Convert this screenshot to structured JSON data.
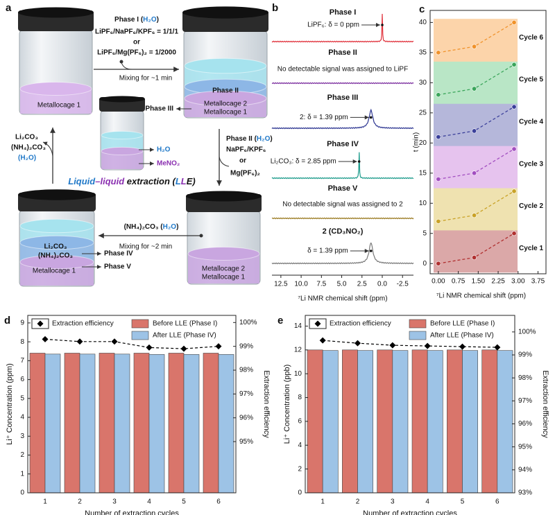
{
  "diagram": {
    "panel": "a",
    "step1": {
      "line1": [
        "Phase I (",
        "H₂O",
        ")"
      ],
      "line2": "LiPF₆/NaPF₆/KPF₆ = 1/1/1",
      "line3": "or",
      "line4": "LiPF₆/Mg(PF₆)₂ = 1/2000",
      "note": "Mixing for ~1 min"
    },
    "jar1": "Metallocage 1",
    "jar2": [
      "Phase II",
      "Metallocage 2",
      "Metallocage 1"
    ],
    "phase3_label": "Phase III",
    "small_jar": [
      "H₂O",
      "MeNO₂"
    ],
    "step2": {
      "line1": [
        "Phase II (",
        "H₂O",
        ")"
      ],
      "line2": "NaPF₆/KPF₆",
      "line3": "or",
      "line4": "Mg(PF₆)₂"
    },
    "jar3": [
      "Metallocage 2",
      "Metallocage 1"
    ],
    "step3": {
      "line1": [
        "(NH₄)₂CO₃ (",
        "H₂O",
        ")"
      ],
      "note": "Mixing for ~2 min"
    },
    "jar4": [
      "Li₂CO₃",
      "(NH₄)₂CO₃",
      "Metallocage 1",
      "Phase IV",
      "Phase V"
    ],
    "step4": [
      "Li₂CO₃",
      "(NH₄)₂CO₃",
      "(H₂O)"
    ],
    "center": [
      "Liquid",
      "–liquid",
      " extraction (",
      "L",
      "L",
      "E",
      ")"
    ]
  },
  "chart_data": [
    {
      "type": "spectrum",
      "panel": "b",
      "xlabel": "⁷Li NMR chemical shift (ppm)",
      "xlim": [
        13.6,
        -3.85
      ],
      "xticks": [
        12.5,
        {
          "value": 10,
          "label": "10.0"
        },
        7.5,
        {
          "value": 5,
          "label": "5.0"
        },
        2.5,
        {
          "value": 0,
          "label": "0.0"
        },
        -2.5
      ],
      "series": [
        {
          "name": "Phase I",
          "color": "#e0303a",
          "peak": 0,
          "annotation": "LiPF₆: δ = 0 ppm"
        },
        {
          "name": "Phase II",
          "color": "#7a2c9e",
          "annotation": "No detectable signal was assigned to LiPF"
        },
        {
          "name": "Phase III",
          "color": "#2a3390",
          "peak": 1.39,
          "annotation": "2: δ = 1.39 ppm"
        },
        {
          "name": "Phase IV",
          "color": "#1a9a8a",
          "peak": 2.85,
          "annotation": "Li₂CO₃: δ = 2.85 ppm"
        },
        {
          "name": "Phase V",
          "color": "#9a7a20",
          "annotation": "No detectable signal was assigned to 2"
        },
        {
          "name": "2 (CD₃NO₂)",
          "color": "#777777",
          "peak": 1.39,
          "annotation": "δ = 1.39 ppm"
        }
      ]
    },
    {
      "type": "line",
      "panel": "c",
      "xlabel": "⁷Li NMR chemical shift (ppm)",
      "ylabel": "t (min)",
      "x": [
        0,
        1.35,
        2.85
      ],
      "xlim": [
        -0.31,
        4.05
      ],
      "ylim": [
        -1.7,
        42
      ],
      "xticks": [
        {
          "value": 0,
          "label": "0.00"
        },
        {
          "value": 0.75,
          "label": "0.75"
        },
        {
          "value": 1.5,
          "label": "1.50"
        },
        {
          "value": 2.25,
          "label": "2.25"
        },
        {
          "value": 3,
          "label": "3.00"
        },
        {
          "value": 3.75,
          "label": "3.75"
        }
      ],
      "yticks": [
        0,
        5,
        10,
        15,
        20,
        25,
        30,
        35,
        40
      ],
      "series": [
        {
          "name": "Cycle 1",
          "color": "#b03030",
          "band": "#dba8a8",
          "values": [
            0,
            1,
            5
          ]
        },
        {
          "name": "Cycle 2",
          "color": "#c9a227",
          "band": "#efe2b0",
          "values": [
            7,
            8,
            12
          ]
        },
        {
          "name": "Cycle 3",
          "color": "#a24ec0",
          "band": "#e6c3ee",
          "values": [
            14,
            15,
            19
          ]
        },
        {
          "name": "Cycle 4",
          "color": "#3a3f9a",
          "band": "#b5b7da",
          "values": [
            21,
            22,
            26
          ]
        },
        {
          "name": "Cycle 5",
          "color": "#3aa55a",
          "band": "#b9e6c6",
          "values": [
            28,
            29,
            33
          ]
        },
        {
          "name": "Cycle 6",
          "color": "#f0922b",
          "band": "#fcd4aa",
          "values": [
            35,
            36,
            40
          ]
        }
      ]
    },
    {
      "type": "bar",
      "panel": "d",
      "xlabel": "Number of extraction cycles",
      "ylabel": "Li⁺ Concentration (ppm)",
      "y2label": "Extraction efficiency",
      "categories": [
        "1",
        "2",
        "3",
        "4",
        "5",
        "6"
      ],
      "ylim": [
        0,
        9.4
      ],
      "yticks": [
        0,
        1,
        2,
        3,
        4,
        5,
        6,
        7,
        8,
        9
      ],
      "y2lim": [
        92.85,
        100.3
      ],
      "y2ticks": [
        {
          "value": 95,
          "label": "95%"
        },
        {
          "value": 96,
          "label": "96%"
        },
        {
          "value": 97,
          "label": "97%"
        },
        {
          "value": 98,
          "label": "98%"
        },
        {
          "value": 99,
          "label": "99%"
        },
        {
          "value": 100,
          "label": "100%"
        }
      ],
      "series": [
        {
          "name": "Extraction efficiency",
          "color": "#000000",
          "axis": "y2",
          "values": [
            99.3,
            99.2,
            99.2,
            98.95,
            98.9,
            99.0
          ]
        },
        {
          "name": "Before LLE (Phase I)",
          "color": "#d9756b",
          "values": [
            7.4,
            7.4,
            7.4,
            7.4,
            7.4,
            7.4
          ]
        },
        {
          "name": "After LLE (Phase IV)",
          "color": "#9dc3e6",
          "values": [
            7.35,
            7.35,
            7.35,
            7.33,
            7.33,
            7.33
          ]
        }
      ]
    },
    {
      "type": "bar",
      "panel": "e",
      "xlabel": "Number of extraction cycles",
      "ylabel": "Li⁺ Concentration (ppb)",
      "y2label": "Extraction efficiency",
      "categories": [
        "1",
        "2",
        "3",
        "4",
        "5",
        "6"
      ],
      "ylim": [
        0,
        14.9
      ],
      "yticks": [
        0,
        2,
        4,
        6,
        8,
        10,
        12,
        14
      ],
      "y2lim": [
        93,
        100.72
      ],
      "y2ticks": [
        {
          "value": 93,
          "label": "93%"
        },
        {
          "value": 94,
          "label": "94%"
        },
        {
          "value": 95,
          "label": "95%"
        },
        {
          "value": 96,
          "label": "96%"
        },
        {
          "value": 97,
          "label": "97%"
        },
        {
          "value": 98,
          "label": "98%"
        },
        {
          "value": 99,
          "label": "99%"
        },
        {
          "value": 100,
          "label": "100%"
        }
      ],
      "series": [
        {
          "name": "Extraction efficiency",
          "color": "#000000",
          "axis": "y2",
          "values": [
            99.63,
            99.51,
            99.42,
            99.39,
            99.36,
            99.33
          ]
        },
        {
          "name": "Before LLE (Phase I)",
          "color": "#d9756b",
          "values": [
            12.0,
            12.0,
            12.0,
            12.0,
            12.0,
            12.0
          ]
        },
        {
          "name": "After LLE (Phase IV)",
          "color": "#9dc3e6",
          "values": [
            11.95,
            11.95,
            11.95,
            11.95,
            11.95,
            11.95
          ]
        }
      ]
    }
  ]
}
